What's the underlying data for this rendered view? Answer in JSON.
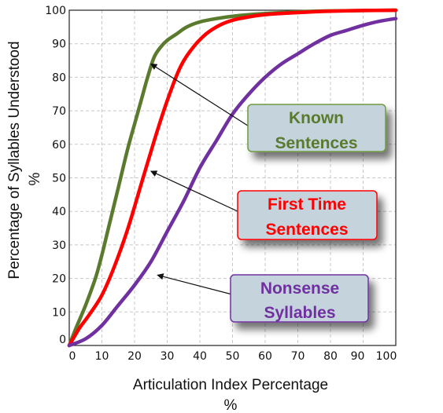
{
  "chart_data": {
    "type": "line",
    "title": "",
    "xlabel": "Articulation Index Percentage",
    "xlabel_unit": "%",
    "ylabel": "Percentage of Syllables Understood",
    "ylabel_unit": "%",
    "xlim": [
      0,
      100
    ],
    "ylim": [
      0,
      100
    ],
    "x_ticks": [
      "0",
      "10",
      "20",
      "30",
      "40",
      "50",
      "60",
      "70",
      "80",
      "90",
      "100"
    ],
    "y_ticks": [
      "0",
      "10",
      "20",
      "30",
      "40",
      "50",
      "60",
      "70",
      "80",
      "90",
      "100"
    ],
    "grid": true,
    "legend": "none",
    "series": [
      {
        "name": "Known Sentences",
        "color": "#5a7a2e",
        "x": [
          0,
          2,
          5,
          8,
          10,
          12,
          15,
          18,
          20,
          22,
          24,
          26,
          28,
          30,
          33,
          36,
          40,
          45,
          50,
          60,
          70,
          80,
          90,
          100
        ],
        "y": [
          0,
          5,
          12,
          20,
          27,
          35,
          47,
          59,
          66,
          73,
          80,
          86,
          89,
          91,
          93,
          95,
          96.5,
          97.5,
          98.2,
          99,
          99.5,
          99.8,
          99.9,
          100
        ]
      },
      {
        "name": "First Time Sentences",
        "color": "#ff0000",
        "x": [
          0,
          3,
          6,
          10,
          14,
          18,
          22,
          26,
          30,
          34,
          38,
          42,
          46,
          50,
          55,
          60,
          70,
          80,
          90,
          100
        ],
        "y": [
          0,
          5,
          9,
          15,
          24,
          35,
          48,
          61,
          73,
          83,
          89,
          93,
          95.5,
          97,
          98,
          98.7,
          99.3,
          99.7,
          99.9,
          100
        ]
      },
      {
        "name": "Nonsense Syllables",
        "color": "#7030a0",
        "x": [
          0,
          5,
          10,
          15,
          20,
          25,
          30,
          35,
          40,
          45,
          50,
          55,
          60,
          65,
          70,
          75,
          80,
          85,
          90,
          95,
          100
        ],
        "y": [
          0,
          2,
          6,
          12,
          18,
          25,
          34,
          43,
          53,
          61,
          69,
          75,
          80,
          84,
          87,
          90,
          92.5,
          94,
          95.5,
          96.7,
          97.5
        ]
      }
    ],
    "annotations": [
      {
        "line1": "Known",
        "line2": "Sentences",
        "color": "#5a7a2e",
        "border": "#6f9a3e",
        "fill": "#c5d3dd",
        "arrow_to": [
          25,
          84
        ]
      },
      {
        "line1": "First Time",
        "line2": "Sentences",
        "color": "#ff0000",
        "border": "#ff0000",
        "fill": "#c5d3dd",
        "arrow_to": [
          25,
          52
        ]
      },
      {
        "line1": "Nonsense",
        "line2": "Syllables",
        "color": "#7030a0",
        "border": "#7030a0",
        "fill": "#c5d3dd",
        "arrow_to": [
          27,
          21
        ]
      }
    ]
  }
}
